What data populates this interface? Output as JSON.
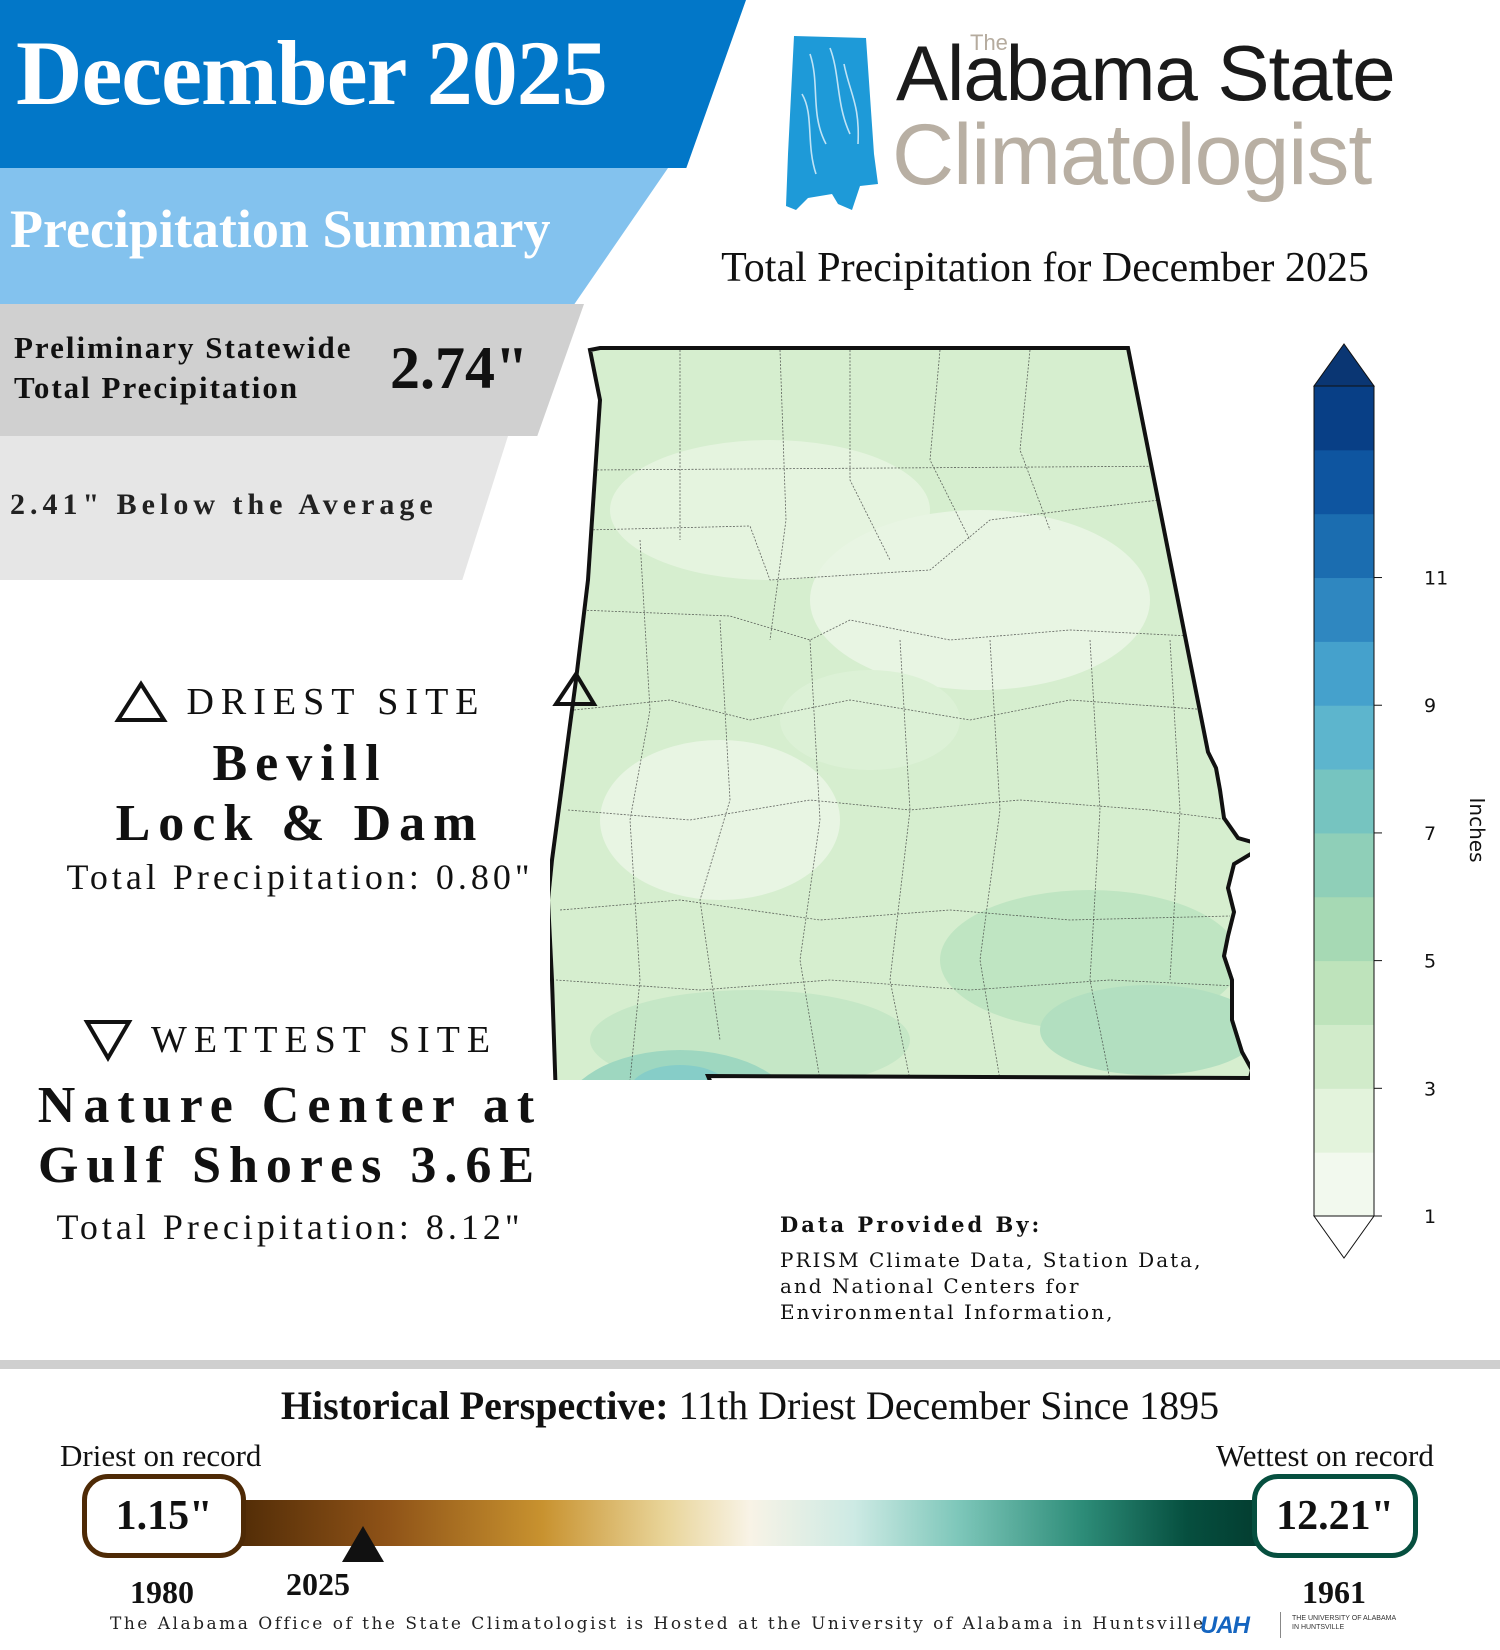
{
  "header": {
    "month_title": "December 2025",
    "subtitle": "Precipitation Summary",
    "statewide_label": "Preliminary Statewide Total Precipitation",
    "statewide_value": "2.74\"",
    "below_average": "2.41\" Below the Average"
  },
  "logo": {
    "the": "The",
    "line1": "Alabama State",
    "line2": "Climatologist"
  },
  "map": {
    "title": "Total Precipitation for December 2025"
  },
  "driest": {
    "heading": "DRIEST SITE",
    "name_line1": "Bevill",
    "name_line2": "Lock & Dam",
    "total": "Total Precipitation: 0.80\""
  },
  "wettest": {
    "heading": "WETTEST SITE",
    "name_line1": "Nature Center at",
    "name_line2": "Gulf Shores 3.6E",
    "total": "Total Precipitation: 8.12\""
  },
  "credits": {
    "heading": "Data Provided By:",
    "line1": "PRISM Climate Data, Station Data,",
    "line2": "and National Centers for",
    "line3": "Environmental Information,"
  },
  "colorbar": {
    "unit": "Inches",
    "ticks": [
      "1",
      "3",
      "5",
      "7",
      "9",
      "11"
    ],
    "colors": [
      "#f2f9ee",
      "#e3f3dc",
      "#d1ebca",
      "#bee3bb",
      "#a6d9b4",
      "#8fcfb8",
      "#76c4c0",
      "#5db5cd",
      "#45a1cc",
      "#2f87c0",
      "#1b6db0",
      "#0e55a0",
      "#083f86"
    ]
  },
  "history": {
    "title_bold": "Historical Perspective:",
    "title_rest": "11th Driest December Since 1895",
    "driest_label": "Driest on record",
    "wettest_label": "Wettest  on record",
    "driest_value": "1.15\"",
    "wettest_value": "12.21\"",
    "driest_year": "1980",
    "wettest_year": "1961",
    "current_year": "2025",
    "current_value_in": 2.74,
    "min_in": 1.15,
    "max_in": 12.21
  },
  "footer": {
    "text": "The Alabama Office of the State Climatologist is Hosted at the University of Alabama in Huntsville",
    "uah_mark": "UAH",
    "uah_text": "THE UNIVERSITY OF ALABAMA IN HUNTSVILLE"
  }
}
